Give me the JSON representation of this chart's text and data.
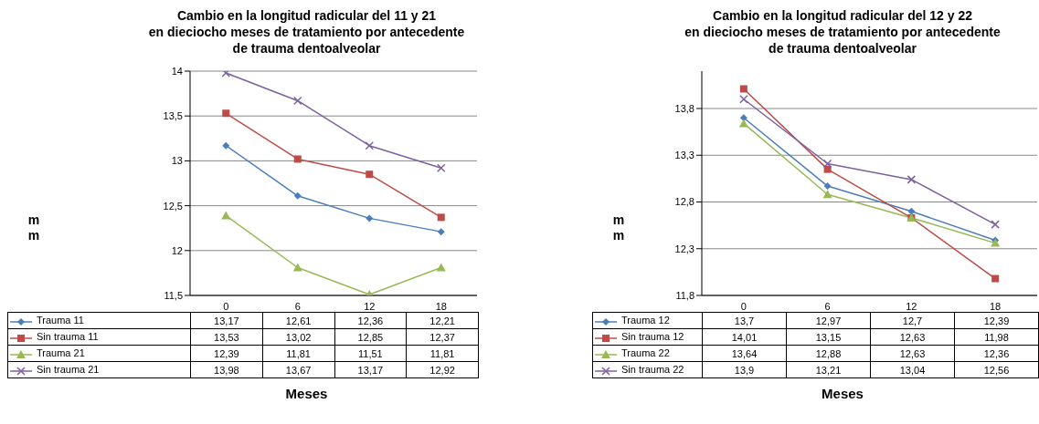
{
  "chart_data": [
    {
      "type": "line",
      "title": "Cambio en la longitud radicular del 11 y 21\nen dieciocho meses de tratamiento por antecedente\nde trauma dentoalveolar",
      "xlabel": "Meses",
      "ylabel": "mm",
      "categories": [
        "0",
        "6",
        "12",
        "18"
      ],
      "ylim": [
        11.5,
        14
      ],
      "yticks": [
        {
          "value": 11.5,
          "label": "11,5"
        },
        12,
        {
          "value": 12.5,
          "label": "12,5"
        },
        13,
        {
          "value": 13.5,
          "label": "13,5"
        },
        14
      ],
      "grid": "y",
      "legend": "bottom",
      "series": [
        {
          "name": "Trauma 11",
          "color": "#4a7ebb",
          "marker": "diamond",
          "values": [
            13.17,
            12.61,
            12.36,
            12.21
          ],
          "value_labels": [
            "13,17",
            "12,61",
            "12,36",
            "12,21"
          ]
        },
        {
          "name": "Sin trauma 11",
          "color": "#be4b48",
          "marker": "square",
          "values": [
            13.53,
            13.02,
            12.85,
            12.37
          ],
          "value_labels": [
            "13,53",
            "13,02",
            "12,85",
            "12,37"
          ]
        },
        {
          "name": "Trauma 21",
          "color": "#98b954",
          "marker": "triangle",
          "values": [
            12.39,
            11.81,
            11.51,
            11.81
          ],
          "value_labels": [
            "12,39",
            "11,81",
            "11,51",
            "11,81"
          ]
        },
        {
          "name": "Sin trauma 21",
          "color": "#7d60a0",
          "marker": "cross",
          "values": [
            13.98,
            13.67,
            13.17,
            12.92
          ],
          "value_labels": [
            "13,98",
            "13,67",
            "13,17",
            "12,92"
          ]
        }
      ]
    },
    {
      "type": "line",
      "title": "Cambio en la longitud radicular del 12 y 22\nen dieciocho meses de tratamiento por antecedente\nde trauma dentoalveolar",
      "xlabel": "Meses",
      "ylabel": "mm",
      "categories": [
        "0",
        "6",
        "12",
        "18"
      ],
      "ylim": [
        11.8,
        14.2
      ],
      "yticks": [
        {
          "value": 11.8,
          "label": "11,8"
        },
        {
          "value": 12.3,
          "label": "12,3"
        },
        {
          "value": 12.8,
          "label": "12,8"
        },
        {
          "value": 13.3,
          "label": "13,3"
        },
        {
          "value": 13.8,
          "label": "13,8"
        }
      ],
      "grid": "y",
      "legend": "bottom",
      "series": [
        {
          "name": "Trauma 12",
          "color": "#4a7ebb",
          "marker": "diamond",
          "values": [
            13.7,
            12.97,
            12.7,
            12.39
          ],
          "value_labels": [
            "13,7",
            "12,97",
            "12,7",
            "12,39"
          ]
        },
        {
          "name": "Sin trauma 12",
          "color": "#be4b48",
          "marker": "square",
          "values": [
            14.01,
            13.15,
            12.63,
            11.98
          ],
          "value_labels": [
            "14,01",
            "13,15",
            "12,63",
            "11,98"
          ]
        },
        {
          "name": "Trauma 22",
          "color": "#98b954",
          "marker": "triangle",
          "values": [
            13.64,
            12.88,
            12.63,
            12.36
          ],
          "value_labels": [
            "13,64",
            "12,88",
            "12,63",
            "12,36"
          ]
        },
        {
          "name": "Sin trauma 22",
          "color": "#7d60a0",
          "marker": "cross",
          "values": [
            13.9,
            13.21,
            13.04,
            12.56
          ],
          "value_labels": [
            "13,9",
            "13,21",
            "13,04",
            "12,56"
          ]
        }
      ]
    }
  ]
}
